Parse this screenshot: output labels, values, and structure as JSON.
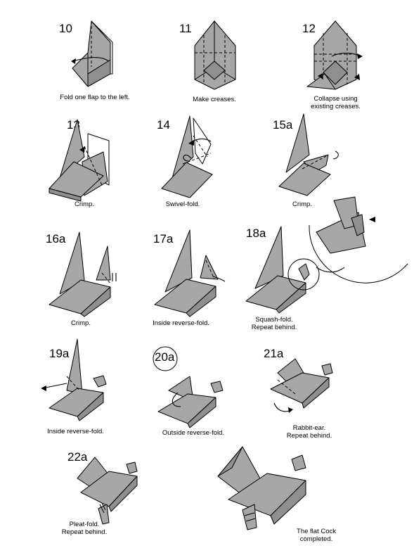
{
  "steps": [
    {
      "num": "10",
      "caption": "Fold one flap to the left."
    },
    {
      "num": "11",
      "caption": "Make creases."
    },
    {
      "num": "12",
      "caption": "Collapse using\nexisting creases."
    },
    {
      "num": "13",
      "caption": "Crimp."
    },
    {
      "num": "14",
      "caption": "Swivel-fold."
    },
    {
      "num": "15a",
      "caption": "Crimp."
    },
    {
      "num": "16a",
      "caption": "Crimp."
    },
    {
      "num": "17a",
      "caption": "Inside reverse-fold."
    },
    {
      "num": "18a",
      "caption": "Squash-fold.\nRepeat behind."
    },
    {
      "num": "19a",
      "caption": "Inside reverse-fold."
    },
    {
      "num": "20a",
      "caption": "Outside reverse-fold."
    },
    {
      "num": "21a",
      "caption": "Rabbit-ear.\nRepeat behind."
    },
    {
      "num": "22a",
      "caption": "Pleat-fold.\nRepeat behind."
    },
    {
      "num": "",
      "caption": "The flat Cock\ncompleted."
    }
  ],
  "colors": {
    "paper": "#a7a7a7",
    "paper_dark": "#8f8f8f",
    "line": "#000000",
    "background": "#ffffff"
  }
}
